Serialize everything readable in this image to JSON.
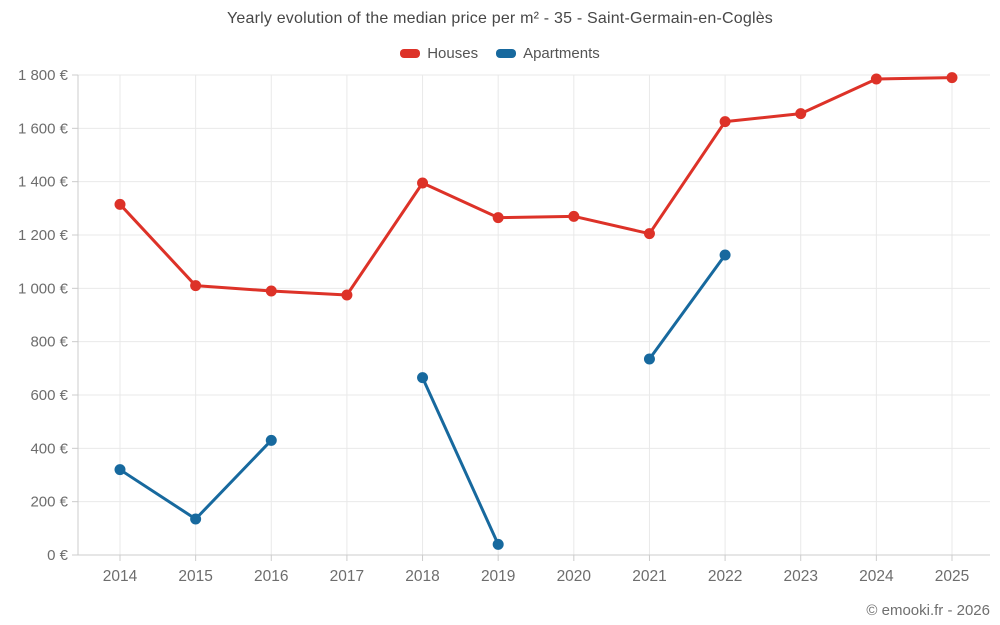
{
  "title": "Yearly evolution of the median price per m² - 35 - Saint-Germain-en-Coglès",
  "copyright": "© emooki.fr - 2026",
  "chart_data": {
    "type": "line",
    "title": "Yearly evolution of the median price per m² - 35 - Saint-Germain-en-Coglès",
    "categories": [
      "2014",
      "2015",
      "2016",
      "2017",
      "2018",
      "2019",
      "2020",
      "2021",
      "2022",
      "2023",
      "2024",
      "2025"
    ],
    "series": [
      {
        "name": "Houses",
        "color": "#dd3228",
        "values": [
          1315,
          1010,
          990,
          975,
          1395,
          1265,
          1270,
          1205,
          1625,
          1655,
          1785,
          1790
        ]
      },
      {
        "name": "Apartments",
        "color": "#17699e",
        "values": [
          320,
          135,
          430,
          null,
          665,
          40,
          null,
          735,
          1125,
          null,
          null,
          null
        ]
      }
    ],
    "xlabel": "",
    "ylabel": "",
    "ylim": [
      0,
      1800
    ],
    "yticks": [
      0,
      200,
      400,
      600,
      800,
      1000,
      1200,
      1400,
      1600,
      1800
    ],
    "ytick_labels": [
      "0 €",
      "200 €",
      "400 €",
      "600 €",
      "800 €",
      "1 000 €",
      "1 200 €",
      "1 400 €",
      "1 600 €",
      "1 800 €"
    ],
    "grid": true,
    "legend_position": "top",
    "marker": "circle"
  }
}
